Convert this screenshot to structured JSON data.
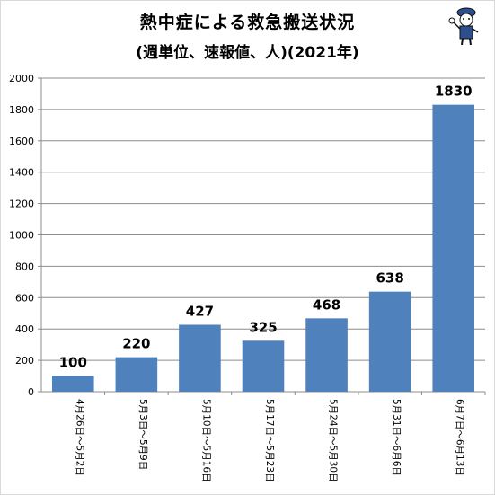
{
  "chart_data": {
    "type": "bar",
    "title": "熱中症による救急搬送状況",
    "subtitle": "(週単位、速報値、人)(2021年)",
    "xlabel": "",
    "ylabel": "",
    "ylim": [
      0,
      2000
    ],
    "yticks": [
      "0",
      "200",
      "400",
      "600",
      "800",
      "1000",
      "1200",
      "1400",
      "1600",
      "1800",
      "2000"
    ],
    "grid": true,
    "legend": "none",
    "bar_color": "#4f81bd",
    "categories": [
      "4月26日〜5月2日",
      "5月3日〜5月9日",
      "5月10日〜5月16日",
      "5月17日〜5月23日",
      "5月24日〜5月30日",
      "5月31日〜6月6日",
      "6月7日〜6月13日"
    ],
    "values": [
      100,
      220,
      427,
      325,
      468,
      638,
      1830
    ],
    "data_labels": [
      "100",
      "220",
      "427",
      "325",
      "468",
      "638",
      "1830"
    ]
  }
}
